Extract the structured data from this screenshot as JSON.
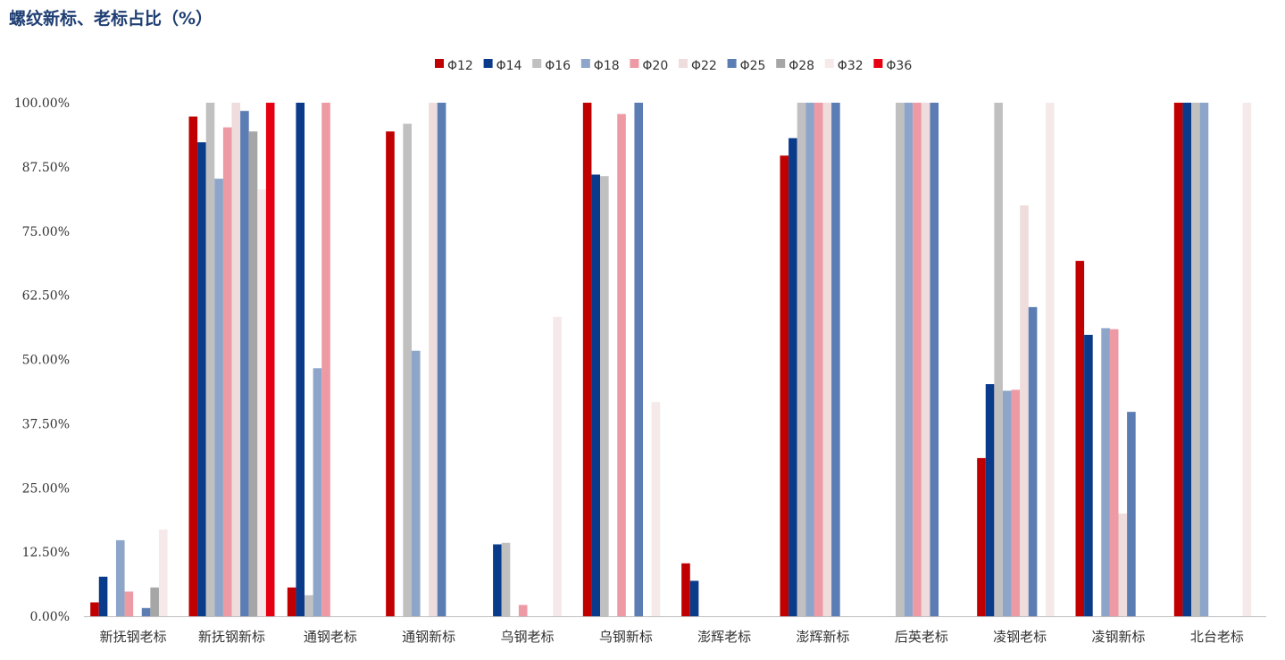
{
  "chart_data": {
    "type": "bar",
    "title": "螺纹新标、老标占比（%）",
    "xlabel": "",
    "ylabel": "",
    "ylim": [
      0,
      100
    ],
    "yticks": [
      "0.00%",
      "12.50%",
      "25.00%",
      "37.50%",
      "50.00%",
      "62.50%",
      "75.00%",
      "87.50%",
      "100.00%"
    ],
    "legend_position": "top-center",
    "categories": [
      "新抚钢老标",
      "新抚钢新标",
      "通钢老标",
      "通钢新标",
      "乌钢老标",
      "乌钢新标",
      "澎辉老标",
      "澎辉新标",
      "后英老标",
      "凌钢老标",
      "凌钢新标",
      "北台老标"
    ],
    "series": [
      {
        "name": "Φ12",
        "color": "#c00000",
        "values": [
          2.7,
          97.3,
          5.6,
          94.4,
          0,
          100,
          10.3,
          89.7,
          0,
          30.8,
          69.2,
          100
        ]
      },
      {
        "name": "Φ14",
        "color": "#0a3a8a",
        "values": [
          7.7,
          92.3,
          100,
          0,
          14,
          86,
          6.9,
          93.1,
          0,
          45.2,
          54.8,
          100
        ]
      },
      {
        "name": "Φ16",
        "color": "#c0c0c0",
        "values": [
          0,
          100,
          4.1,
          95.9,
          14.3,
          85.7,
          0,
          100,
          100,
          100,
          0,
          100
        ]
      },
      {
        "name": "Φ18",
        "color": "#8ca5c9",
        "values": [
          14.8,
          85.2,
          48.3,
          51.7,
          0,
          0,
          0,
          100,
          100,
          43.9,
          56.1,
          100
        ]
      },
      {
        "name": "Φ20",
        "color": "#ee9aa5",
        "values": [
          4.8,
          95.2,
          100,
          0,
          2.2,
          97.8,
          0,
          100,
          100,
          44.1,
          55.9,
          0
        ]
      },
      {
        "name": "Φ22",
        "color": "#efdcdc",
        "values": [
          0,
          100,
          0,
          100,
          0,
          0,
          0,
          100,
          100,
          80,
          20,
          0
        ]
      },
      {
        "name": "Φ25",
        "color": "#5b7db3",
        "values": [
          1.6,
          98.4,
          0,
          100,
          0,
          100,
          0,
          100,
          100,
          60.2,
          39.8,
          0
        ]
      },
      {
        "name": "Φ28",
        "color": "#a6a6a6",
        "values": [
          5.6,
          94.4,
          0,
          0,
          0,
          0,
          0,
          0,
          0,
          0,
          0,
          0
        ]
      },
      {
        "name": "Φ32",
        "color": "#f5e9e9",
        "values": [
          16.9,
          83.1,
          0,
          0,
          58.3,
          41.7,
          0,
          0,
          0,
          100,
          0,
          100
        ]
      },
      {
        "name": "Φ36",
        "color": "#e60012",
        "values": [
          0,
          100,
          0,
          0,
          0,
          0,
          0,
          0,
          0,
          0,
          0,
          0
        ]
      }
    ]
  }
}
